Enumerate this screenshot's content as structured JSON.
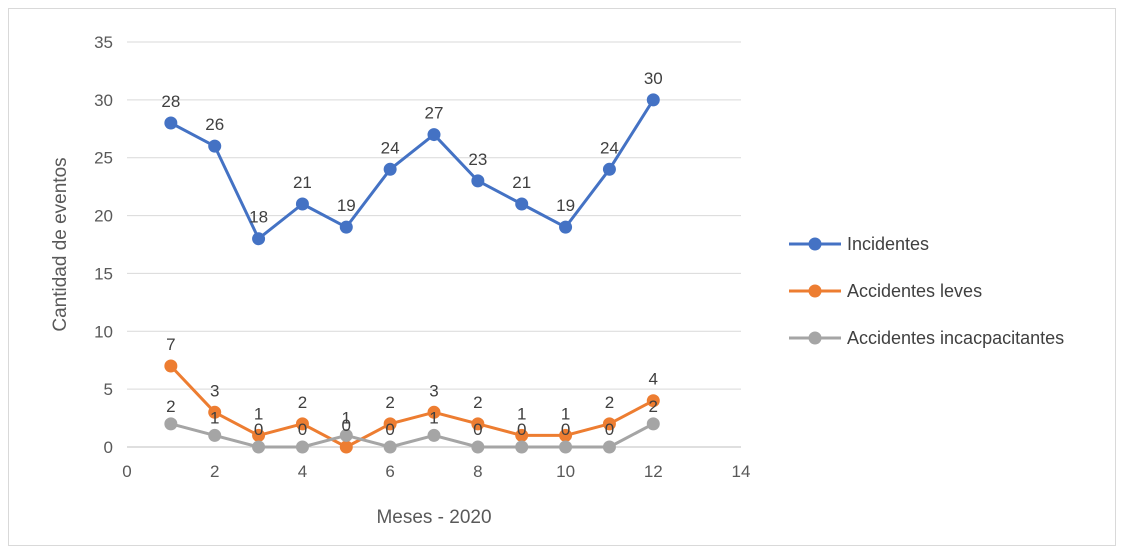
{
  "chart_data": {
    "type": "scatter",
    "title": "",
    "xlabel": "Meses - 2020",
    "ylabel": "Cantidad de eventos",
    "xlim": [
      0,
      14
    ],
    "ylim": [
      0,
      35
    ],
    "x_ticks": [
      0,
      2,
      4,
      6,
      8,
      10,
      12,
      14
    ],
    "y_ticks": [
      0,
      5,
      10,
      15,
      20,
      25,
      30,
      35
    ],
    "grid": "horizontal",
    "legend_position": "right",
    "x": [
      1,
      2,
      3,
      4,
      5,
      6,
      7,
      8,
      9,
      10,
      11,
      12
    ],
    "series": [
      {
        "name": "Incidentes",
        "color": "#4472c4",
        "values": [
          28,
          26,
          18,
          21,
          19,
          24,
          27,
          23,
          21,
          19,
          24,
          30
        ]
      },
      {
        "name": "Accidentes leves",
        "color": "#ed7d31",
        "values": [
          7,
          3,
          1,
          2,
          0,
          2,
          3,
          2,
          1,
          1,
          2,
          4
        ]
      },
      {
        "name": "Accidentes incacpacitantes",
        "color": "#a5a5a5",
        "values": [
          2,
          1,
          0,
          0,
          1,
          0,
          1,
          0,
          0,
          0,
          0,
          2
        ]
      }
    ]
  }
}
